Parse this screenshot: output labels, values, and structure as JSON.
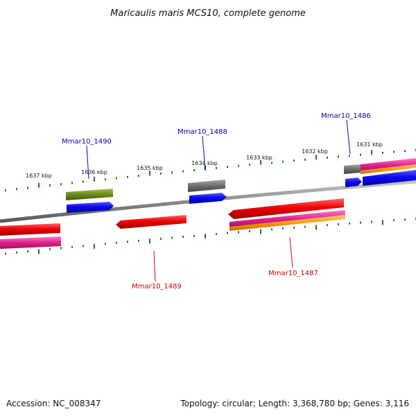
{
  "title": "Maricaulis maris MCS10, complete genome",
  "footer": {
    "accession": "Accession: NC_008347",
    "info": "Topology: circular; Length: 3,368,780 bp; Genes: 3,116"
  },
  "colors": {
    "backbone": "#8a8a8a",
    "ticks": "#1e7a1e",
    "forward_label": "#0000b0",
    "reverse_label": "#c80000",
    "blue": "#0a0af0",
    "red": "#f00000",
    "magenta": "#e0208c",
    "orange": "#ff9a00",
    "gray": "#6e6e6e",
    "olive": "#6d8a1c"
  },
  "ticks": [
    {
      "label": "1637 kbp"
    },
    {
      "label": "1636 kbp"
    },
    {
      "label": "1635 kbp"
    },
    {
      "label": "1634 kbp"
    },
    {
      "label": "1633 kbp"
    },
    {
      "label": "1632 kbp"
    },
    {
      "label": "1631 kbp"
    }
  ],
  "gene_labels": [
    {
      "name": "Mmar10_1490",
      "strand": "forward"
    },
    {
      "name": "Mmar10_1488",
      "strand": "forward"
    },
    {
      "name": "Mmar10_1486",
      "strand": "forward"
    },
    {
      "name": "Mmar10_1489",
      "strand": "reverse"
    },
    {
      "name": "Mmar10_1487",
      "strand": "reverse"
    }
  ]
}
